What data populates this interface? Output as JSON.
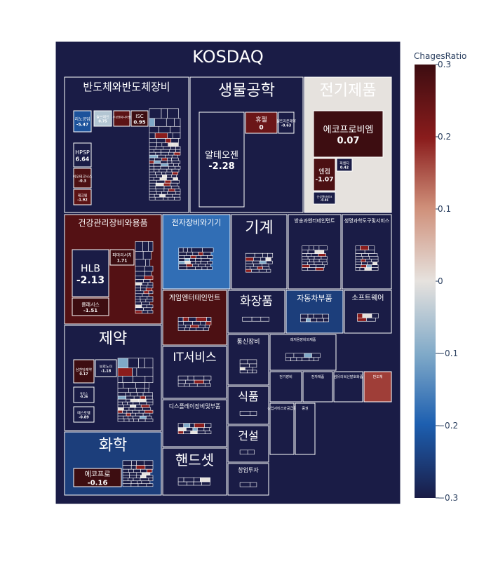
{
  "chart_data": {
    "type": "treemap",
    "title": "",
    "root": "KOSDAQ",
    "colorbar": {
      "title": "ChagesRatio",
      "range": [
        -0.3,
        0.3
      ],
      "ticks": [
        "0.3",
        "0.2",
        "0.1",
        "0",
        "−0.1",
        "−0.2",
        "−0.3"
      ]
    },
    "sectors": [
      {
        "name": "반도체와반도체장비",
        "ratio": -0.3,
        "items": [
          {
            "name": "리노공업",
            "value_label": "-5.47",
            "ratio": -0.22
          },
          {
            "name": "HPSP",
            "value_label": "6.64",
            "ratio": -0.3
          },
          {
            "name": "이오테크닉스",
            "value_label": "-0.3",
            "ratio": 0.28
          },
          {
            "name": "테크윙",
            "value_label": "-1.92",
            "ratio": 0.26
          },
          {
            "name": "솔브레인",
            "value_label": "0.75",
            "ratio": -0.05
          },
          {
            "name": "ISC",
            "value_label": "0.95",
            "ratio": 0.3
          },
          {
            "name": "주성엔지니어링",
            "value_label": "",
            "ratio": 0.26
          }
        ]
      },
      {
        "name": "생물공학",
        "ratio": -0.3,
        "items": [
          {
            "name": "알테오젠",
            "value_label": "-2.28",
            "ratio": -0.3
          },
          {
            "name": "휴젤",
            "value_label": "0",
            "ratio": 0.24
          },
          {
            "name": "셀트리온제약",
            "value_label": "-0.63",
            "ratio": -0.3
          }
        ]
      },
      {
        "name": "전기제품",
        "ratio": 0.0,
        "items": [
          {
            "name": "에코프로비엠",
            "value_label": "0.07",
            "ratio": 0.3
          },
          {
            "name": "엔켐",
            "value_label": "-1.07",
            "ratio": 0.28
          },
          {
            "name": "피엔티",
            "value_label": "0.42",
            "ratio": -0.3
          },
          {
            "name": "신성델타테크",
            "value_label": "-0.46",
            "ratio": -0.3
          }
        ]
      },
      {
        "name": "건강관리장비와용품",
        "ratio": 0.27,
        "items": [
          {
            "name": "HLB",
            "value_label": "-2.13",
            "ratio": -0.3
          },
          {
            "name": "파마리서치",
            "value_label": "1.71",
            "ratio": 0.3
          },
          {
            "name": "클래시스",
            "value_label": "-1.51",
            "ratio": 0.3
          }
        ]
      },
      {
        "name": "전자장비와기기",
        "ratio": -0.18,
        "items": []
      },
      {
        "name": "기계",
        "ratio": -0.3,
        "items": []
      },
      {
        "name": "방송과엔터테인먼트",
        "ratio": -0.3,
        "items": []
      },
      {
        "name": "생명과학도구및서비스",
        "ratio": -0.3,
        "items": []
      },
      {
        "name": "제약",
        "ratio": -0.3,
        "items": [
          {
            "name": "삼천당제약",
            "value_label": "0.17",
            "ratio": 0.3
          },
          {
            "name": "보로노이",
            "value_label": "-1.18",
            "ratio": -0.3
          },
          {
            "name": "휴온스",
            "value_label": "-0.26",
            "ratio": -0.3
          },
          {
            "name": "메스토템",
            "value_label": "-0.89",
            "ratio": -0.3
          }
        ]
      },
      {
        "name": "화학",
        "ratio": -0.25,
        "items": [
          {
            "name": "에코프로",
            "value_label": "-0.16",
            "ratio": 0.3
          }
        ]
      },
      {
        "name": "게임엔터테인먼트",
        "ratio": 0.28,
        "items": []
      },
      {
        "name": "화장품",
        "ratio": -0.3,
        "items": []
      },
      {
        "name": "자동차부품",
        "ratio": -0.25,
        "items": []
      },
      {
        "name": "소프트웨어",
        "ratio": -0.3,
        "items": []
      },
      {
        "name": "IT서비스",
        "ratio": -0.3,
        "items": []
      },
      {
        "name": "통신장비",
        "ratio": -0.3,
        "items": []
      },
      {
        "name": "디스플레이장비및부품",
        "ratio": -0.3,
        "items": []
      },
      {
        "name": "식품",
        "ratio": -0.3,
        "items": []
      },
      {
        "name": "건설",
        "ratio": -0.3,
        "items": []
      },
      {
        "name": "핸드셋",
        "ratio": -0.3,
        "items": []
      },
      {
        "name": "창업투자",
        "ratio": -0.3,
        "items": []
      },
      {
        "name": "레저용장비와제품",
        "ratio": -0.3,
        "items": []
      },
      {
        "name": "전기장비",
        "ratio": -0.3,
        "items": []
      },
      {
        "name": "전자제품",
        "ratio": -0.3,
        "items": []
      },
      {
        "name": "섬유의복신발호화품",
        "ratio": -0.3,
        "items": []
      },
      {
        "name": "반도체",
        "ratio": 0.17,
        "items": []
      },
      {
        "name": "상업서비스와공급품",
        "ratio": -0.3,
        "items": []
      },
      {
        "name": "증권",
        "ratio": -0.3,
        "items": []
      }
    ]
  }
}
